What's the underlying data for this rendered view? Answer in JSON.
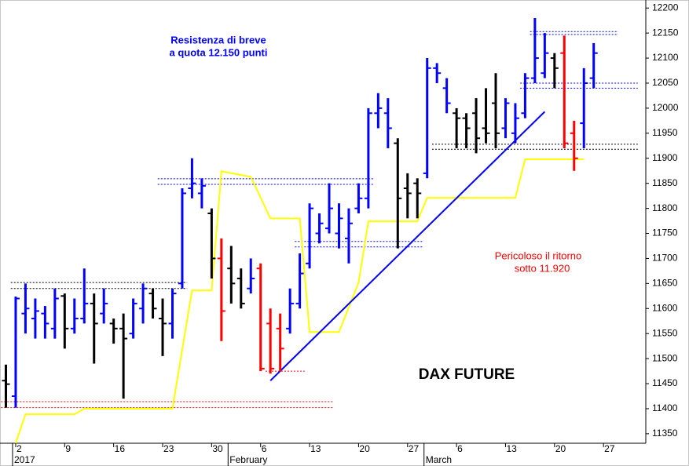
{
  "chart_data": {
    "type": "ohlc",
    "categories": [
      "2016-12-30",
      "2017-01-02",
      "2017-01-03",
      "2017-01-04",
      "2017-01-05",
      "2017-01-06",
      "2017-01-09",
      "2017-01-10",
      "2017-01-11",
      "2017-01-12",
      "2017-01-13",
      "2017-01-16",
      "2017-01-17",
      "2017-01-18",
      "2017-01-19",
      "2017-01-20",
      "2017-01-23",
      "2017-01-24",
      "2017-01-25",
      "2017-01-26",
      "2017-01-27",
      "2017-01-30",
      "2017-01-31",
      "2017-02-01",
      "2017-02-02",
      "2017-02-03",
      "2017-02-06",
      "2017-02-07",
      "2017-02-08",
      "2017-02-09",
      "2017-02-10",
      "2017-02-13",
      "2017-02-14",
      "2017-02-15",
      "2017-02-16",
      "2017-02-17",
      "2017-02-20",
      "2017-02-21",
      "2017-02-22",
      "2017-02-23",
      "2017-02-24",
      "2017-02-27",
      "2017-02-28",
      "2017-03-01",
      "2017-03-02",
      "2017-03-03",
      "2017-03-06",
      "2017-03-07",
      "2017-03-08",
      "2017-03-09",
      "2017-03-10",
      "2017-03-13",
      "2017-03-14",
      "2017-03-15",
      "2017-03-16",
      "2017-03-17",
      "2017-03-20",
      "2017-03-21",
      "2017-03-22",
      "2017-03-23",
      "2017-03-24",
      "2017-03-27",
      "2017-03-28",
      "2017-03-29",
      "2017-03-30",
      "2017-03-31"
    ],
    "ohlc": [
      [
        11456,
        11488,
        11402,
        11449
      ],
      [
        11425,
        11624,
        11402,
        11620
      ],
      [
        11590,
        11650,
        11550,
        11600
      ],
      [
        11580,
        11620,
        11540,
        11595
      ],
      [
        11590,
        11605,
        11540,
        11570
      ],
      [
        11560,
        11640,
        11540,
        11620
      ],
      [
        11625,
        11630,
        11520,
        11560
      ],
      [
        11560,
        11620,
        11550,
        11580
      ],
      [
        11580,
        11680,
        11570,
        11610
      ],
      [
        11610,
        11630,
        11490,
        11570
      ],
      [
        11590,
        11640,
        11570,
        11610
      ],
      [
        11570,
        11580,
        11530,
        11560
      ],
      [
        11560,
        11590,
        11420,
        11540
      ],
      [
        11550,
        11620,
        11540,
        11610
      ],
      [
        11600,
        11650,
        11570,
        11640
      ],
      [
        11630,
        11640,
        11580,
        11600
      ],
      [
        11580,
        11620,
        11505,
        11570
      ],
      [
        11570,
        11640,
        11540,
        11630
      ],
      [
        11650,
        11840,
        11640,
        11830
      ],
      [
        11840,
        11900,
        11820,
        11850
      ],
      [
        11830,
        11860,
        11800,
        11845
      ],
      [
        11790,
        11800,
        11660,
        11700
      ],
      [
        11700,
        11740,
        11535,
        11595
      ],
      [
        11680,
        11725,
        11610,
        11650
      ],
      [
        11660,
        11680,
        11600,
        11610
      ],
      [
        11640,
        11700,
        11630,
        11660
      ],
      [
        11680,
        11690,
        11475,
        11480
      ],
      [
        11570,
        11600,
        11470,
        11480
      ],
      [
        11560,
        11590,
        11475,
        11520
      ],
      [
        11560,
        11640,
        11550,
        11610
      ],
      [
        11610,
        11710,
        11600,
        11670
      ],
      [
        11690,
        11810,
        11680,
        11800
      ],
      [
        11750,
        11790,
        11730,
        11770
      ],
      [
        11760,
        11850,
        11750,
        11800
      ],
      [
        11750,
        11810,
        11720,
        11780
      ],
      [
        11740,
        11800,
        11690,
        11770
      ],
      [
        11800,
        11850,
        11790,
        11820
      ],
      [
        11820,
        12000,
        11800,
        11990
      ],
      [
        11990,
        12030,
        11960,
        12000
      ],
      [
        11990,
        12020,
        11920,
        11960
      ],
      [
        11930,
        11940,
        11720,
        11820
      ],
      [
        11840,
        11870,
        11780,
        11830
      ],
      [
        11850,
        11860,
        11780,
        11830
      ],
      [
        11870,
        12100,
        11860,
        12080
      ],
      [
        12080,
        12090,
        12050,
        12070
      ],
      [
        12040,
        12060,
        11990,
        12010
      ],
      [
        11990,
        12000,
        11920,
        11980
      ],
      [
        11980,
        11990,
        11920,
        11960
      ],
      [
        11990,
        12020,
        11910,
        11940
      ],
      [
        11960,
        12040,
        11930,
        11950
      ],
      [
        12010,
        12070,
        11920,
        11950
      ],
      [
        11960,
        12020,
        11940,
        12010
      ],
      [
        11950,
        12010,
        11930,
        11980
      ],
      [
        11990,
        12070,
        11980,
        12060
      ],
      [
        12060,
        12180,
        12050,
        12100
      ],
      [
        12070,
        12150,
        12060,
        12110
      ],
      [
        12100,
        12110,
        12040,
        12080
      ],
      [
        12110,
        12145,
        11920,
        11930
      ],
      [
        11950,
        11975,
        11875,
        11900
      ],
      [
        11970,
        12080,
        11920,
        12050
      ],
      [
        12060,
        12130,
        12040,
        12110
      ],
      null,
      null,
      null,
      null,
      null
    ],
    "bar_colors": [
      "#000000",
      "#0000ff",
      "#0000ff",
      "#0000ff",
      "#0000ff",
      "#0000ff",
      "#000000",
      "#0000ff",
      "#0000ff",
      "#000000",
      "#0000ff",
      "#000000",
      "#000000",
      "#0000ff",
      "#0000ff",
      "#000000",
      "#000000",
      "#0000ff",
      "#0000ff",
      "#0000ff",
      "#0000ff",
      "#000000",
      "#ff0000",
      "#000000",
      "#000000",
      "#0000ff",
      "#ff0000",
      "#ff0000",
      "#ff0000",
      "#0000ff",
      "#0000ff",
      "#0000ff",
      "#0000ff",
      "#0000ff",
      "#0000ff",
      "#0000ff",
      "#0000ff",
      "#0000ff",
      "#0000ff",
      "#0000ff",
      "#000000",
      "#000000",
      "#000000",
      "#0000ff",
      "#0000ff",
      "#0000ff",
      "#000000",
      "#000000",
      "#000000",
      "#000000",
      "#000000",
      "#0000ff",
      "#0000ff",
      "#0000ff",
      "#0000ff",
      "#0000ff",
      "#000000",
      "#ff0000",
      "#ff0000",
      "#0000ff",
      "#0000ff",
      null,
      null,
      null,
      null,
      null
    ],
    "lines": [
      {
        "color": "#ffff00",
        "x": [
          "2017-01-02",
          "2017-01-03",
          "2017-01-10",
          "2017-01-11",
          "2017-01-24",
          "2017-01-26",
          "2017-01-30",
          "2017-01-31",
          "2017-02-03",
          "2017-02-07",
          "2017-02-10",
          "2017-02-13",
          "2017-02-16",
          "2017-02-20",
          "2017-02-21",
          "2017-02-28",
          "2017-03-01",
          "2017-03-14",
          "2017-03-15",
          "2017-03-23"
        ],
        "values": [
          11331,
          11389,
          11389,
          11400,
          11400,
          11636,
          11636,
          11874,
          11863,
          11780,
          11780,
          11553,
          11553,
          11652,
          11774,
          11774,
          11821,
          11821,
          11898,
          11898
        ]
      },
      {
        "color": "#0000ff",
        "x": [
          "2017-02-07",
          "2017-03-17"
        ],
        "values": [
          11456,
          11993
        ]
      }
    ],
    "levels": [
      {
        "value": 11652,
        "x": [
          "2017-01-02",
          "2017-01-25"
        ],
        "color": "#000000"
      },
      {
        "value": 11640,
        "x": [
          "2017-01-02",
          "2017-01-25"
        ],
        "color": "#000000"
      },
      {
        "value": 11414,
        "x": [
          "2016-12-30",
          "2017-02-15"
        ],
        "color": "#ff0000"
      },
      {
        "value": 11402,
        "x": [
          "2016-12-30",
          "2017-02-15"
        ],
        "color": "#ff0000"
      },
      {
        "value": 11859,
        "x": [
          "2017-01-23",
          "2017-02-21"
        ],
        "color": "#0000ff"
      },
      {
        "value": 11848,
        "x": [
          "2017-01-23",
          "2017-02-21"
        ],
        "color": "#0000ff"
      },
      {
        "value": 11734,
        "x": [
          "2017-02-10",
          "2017-02-28"
        ],
        "color": "#0000ff"
      },
      {
        "value": 11723,
        "x": [
          "2017-02-10",
          "2017-02-28"
        ],
        "color": "#0000ff"
      },
      {
        "value": 11475,
        "x": [
          "2017-02-07",
          "2017-02-10"
        ],
        "color": "#ff0000"
      },
      {
        "value": 12153,
        "x": [
          "2017-03-16",
          "2017-03-28"
        ],
        "color": "#0000ff"
      },
      {
        "value": 12147,
        "x": [
          "2017-03-16",
          "2017-03-28"
        ],
        "color": "#0000ff"
      },
      {
        "value": 12050,
        "x": [
          "2017-03-15",
          "2017-03-30"
        ],
        "color": "#0000ff"
      },
      {
        "value": 12040,
        "x": [
          "2017-03-15",
          "2017-03-30"
        ],
        "color": "#0000ff"
      },
      {
        "value": 11928,
        "x": [
          "2017-03-02",
          "2017-03-30"
        ],
        "color": "#000000"
      },
      {
        "value": 11918,
        "x": [
          "2017-03-02",
          "2017-03-30"
        ],
        "color": "#000000"
      }
    ],
    "ylim": [
      11331,
      12216
    ],
    "yticks": [
      11350,
      11400,
      11450,
      11500,
      11550,
      11600,
      11650,
      11700,
      11750,
      11800,
      11850,
      11900,
      11950,
      12000,
      12050,
      12100,
      12150,
      12200
    ],
    "xticks": [
      {
        "value": "2017-01-02",
        "label": "2"
      },
      {
        "value": "2017-01-09",
        "label": "9"
      },
      {
        "value": "2017-01-16",
        "label": "16"
      },
      {
        "value": "2017-01-23",
        "label": "23"
      },
      {
        "value": "2017-01-30",
        "label": "30"
      },
      {
        "value": "2017-02-06",
        "label": "6"
      },
      {
        "value": "2017-02-13",
        "label": "13"
      },
      {
        "value": "2017-02-20",
        "label": "20"
      },
      {
        "value": "2017-02-27",
        "label": "27"
      },
      {
        "value": "2017-03-06",
        "label": "6"
      },
      {
        "value": "2017-03-13",
        "label": "13"
      },
      {
        "value": "2017-03-20",
        "label": "20"
      },
      {
        "value": "2017-03-27",
        "label": "27"
      }
    ],
    "month_labels": [
      {
        "value": "2017-01-02",
        "label": "2017"
      },
      {
        "value": "2017-02-01",
        "label": "February"
      },
      {
        "value": "2017-03-01",
        "label": "March"
      }
    ],
    "annotations": [
      "Resistenza di breve",
      "a quota 12.150 punti",
      "Pericoloso il ritorno",
      "sotto 11.920",
      "DAX FUTURE"
    ]
  }
}
